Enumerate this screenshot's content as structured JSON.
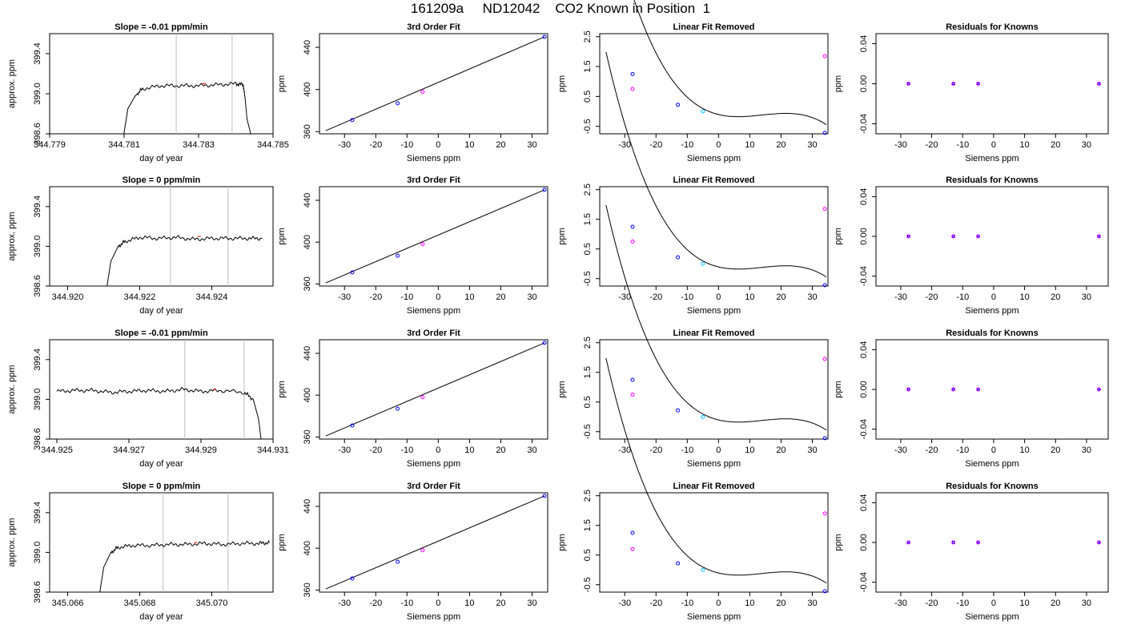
{
  "page_title": "161209a     ND12042    CO2 Known in Position  1",
  "colors": {
    "axis": "#000000",
    "trace": "#000000",
    "vline": "#bebebe",
    "known_point": "#0000ff",
    "removed_point": "#ff00ff",
    "highlight_point": "#00bfff",
    "mean_mark": "#ff0000"
  },
  "chart_data": [
    {
      "type": "line",
      "row": 1,
      "col": 1,
      "title": "Slope =  -0.01  ppm/min",
      "xlabel": "day of year",
      "ylabel": "approx. ppm",
      "xlim": [
        344.779,
        344.785
      ],
      "ylim": [
        398.6,
        399.6
      ],
      "xticks": [
        "344.779",
        "344.781",
        "344.783",
        "344.785"
      ],
      "yticks": [
        "398.6",
        "399.0",
        "399.4"
      ],
      "vlines": [
        344.7824,
        344.7839
      ],
      "x": [
        344.78095,
        344.7811,
        344.7813,
        344.7815,
        344.782,
        344.7825,
        344.783,
        344.7835,
        344.784,
        344.7842,
        344.78425,
        344.7843,
        344.7844,
        344.7845
      ],
      "y": [
        398.5,
        398.85,
        398.98,
        399.05,
        399.08,
        399.08,
        399.08,
        399.09,
        399.1,
        399.09,
        398.95,
        398.75,
        398.6,
        398.5
      ]
    },
    {
      "type": "line",
      "row": 1,
      "col": 2,
      "title": "3rd Order Fit",
      "xlabel": "Siemens ppm",
      "ylabel": "ppm",
      "xlim": [
        -38,
        35
      ],
      "ylim": [
        358,
        453
      ],
      "xticks": [
        "-30",
        "-20",
        "-10",
        "0",
        "10",
        "20",
        "30"
      ],
      "yticks": [
        "360",
        "400",
        "440"
      ],
      "known_points": [
        {
          "x": -27.5,
          "y": 371
        },
        {
          "x": -13,
          "y": 387
        },
        {
          "x": 34,
          "y": 450
        }
      ],
      "removed_points": [
        {
          "x": -5,
          "y": 398
        }
      ]
    },
    {
      "type": "scatter",
      "row": 1,
      "col": 3,
      "title": "Linear Fit Removed",
      "xlabel": "Siemens ppm",
      "ylabel": "ppm",
      "xlim": [
        -38,
        35
      ],
      "ylim": [
        -0.75,
        2.6
      ],
      "xticks": [
        "-30",
        "-20",
        "-10",
        "0",
        "10",
        "20",
        "30"
      ],
      "yticks": [
        "-0.5",
        "0.5",
        "1.5",
        "2.5"
      ],
      "known_points": [
        {
          "x": -27.5,
          "y": 1.25
        },
        {
          "x": -13,
          "y": 0.22
        },
        {
          "x": 34,
          "y": -0.72
        }
      ],
      "highlight_points": [
        {
          "x": -5,
          "y": 0.0
        }
      ],
      "removed_points": [
        {
          "x": -27.5,
          "y": 0.75
        },
        {
          "x": 34,
          "y": 1.85
        }
      ]
    },
    {
      "type": "scatter",
      "row": 1,
      "col": 4,
      "title": "Residuals for Knowns",
      "xlabel": "Siemens ppm",
      "ylabel": "ppm",
      "xlim": [
        -38,
        37
      ],
      "ylim": [
        -0.05,
        0.05
      ],
      "xticks": [
        "-30",
        "-20",
        "-10",
        "0",
        "10",
        "20",
        "30"
      ],
      "yticks": [
        "-0.04",
        "0.00",
        "0.04"
      ],
      "points": [
        {
          "x": -27.5,
          "y": 0
        },
        {
          "x": -13,
          "y": 0
        },
        {
          "x": -5,
          "y": 0
        },
        {
          "x": 34,
          "y": 0
        }
      ]
    },
    {
      "type": "line",
      "row": 2,
      "col": 1,
      "title": "Slope =  0  ppm/min",
      "xlabel": "day of year",
      "ylabel": "approx. ppm",
      "xlim": [
        344.9195,
        344.9257
      ],
      "ylim": [
        398.6,
        399.6
      ],
      "xticks": [
        "344.920",
        "344.922",
        "344.924"
      ],
      "yticks": [
        "398.6",
        "399.0",
        "399.4"
      ],
      "vlines": [
        344.92285,
        344.92445
      ],
      "x": [
        344.92105,
        344.9212,
        344.9214,
        344.9216,
        344.922,
        344.9225,
        344.923,
        344.9235,
        344.924,
        344.9245,
        344.925,
        344.9254
      ],
      "y": [
        398.5,
        398.85,
        399.0,
        399.05,
        399.09,
        399.08,
        399.09,
        399.07,
        399.08,
        399.08,
        399.08,
        399.08
      ]
    },
    {
      "type": "line",
      "row": 2,
      "col": 2,
      "title": "3rd Order Fit",
      "xlabel": "Siemens ppm",
      "ylabel": "ppm",
      "xlim": [
        -38,
        35
      ],
      "ylim": [
        358,
        453
      ],
      "xticks": [
        "-30",
        "-20",
        "-10",
        "0",
        "10",
        "20",
        "30"
      ],
      "yticks": [
        "360",
        "400",
        "440"
      ],
      "known_points": [
        {
          "x": -27.5,
          "y": 371
        },
        {
          "x": -13,
          "y": 387
        },
        {
          "x": 34,
          "y": 450
        }
      ],
      "removed_points": [
        {
          "x": -5,
          "y": 398
        }
      ]
    },
    {
      "type": "scatter",
      "row": 2,
      "col": 3,
      "title": "Linear Fit Removed",
      "xlabel": "Siemens ppm",
      "ylabel": "ppm",
      "xlim": [
        -38,
        35
      ],
      "ylim": [
        -0.75,
        2.6
      ],
      "xticks": [
        "-30",
        "-20",
        "-10",
        "0",
        "10",
        "20",
        "30"
      ],
      "yticks": [
        "-0.5",
        "0.5",
        "1.5",
        "2.5"
      ],
      "known_points": [
        {
          "x": -27.5,
          "y": 1.25
        },
        {
          "x": -13,
          "y": 0.22
        },
        {
          "x": 34,
          "y": -0.72
        }
      ],
      "highlight_points": [
        {
          "x": -5,
          "y": 0.0
        }
      ],
      "removed_points": [
        {
          "x": -27.5,
          "y": 0.75
        },
        {
          "x": 34,
          "y": 1.85
        }
      ]
    },
    {
      "type": "scatter",
      "row": 2,
      "col": 4,
      "title": "Residuals for Knowns",
      "xlabel": "Siemens ppm",
      "ylabel": "ppm",
      "xlim": [
        -38,
        37
      ],
      "ylim": [
        -0.05,
        0.05
      ],
      "xticks": [
        "-30",
        "-20",
        "-10",
        "0",
        "10",
        "20",
        "30"
      ],
      "yticks": [
        "-0.04",
        "0.00",
        "0.04"
      ],
      "points": [
        {
          "x": -27.5,
          "y": 0
        },
        {
          "x": -13,
          "y": 0
        },
        {
          "x": -5,
          "y": 0
        },
        {
          "x": 34,
          "y": 0
        }
      ]
    },
    {
      "type": "line",
      "row": 3,
      "col": 1,
      "title": "Slope =  -0.01  ppm/min",
      "xlabel": "day of year",
      "ylabel": "approx. ppm",
      "xlim": [
        344.9248,
        344.931
      ],
      "ylim": [
        398.6,
        399.6
      ],
      "xticks": [
        "344.925",
        "344.927",
        "344.929",
        "344.931"
      ],
      "yticks": [
        "398.6",
        "399.0",
        "399.4"
      ],
      "vlines": [
        344.92855,
        344.9302
      ],
      "x": [
        344.925,
        344.9255,
        344.926,
        344.9265,
        344.927,
        344.9275,
        344.928,
        344.9285,
        344.929,
        344.9295,
        344.9302,
        344.93045,
        344.9306,
        344.9307
      ],
      "y": [
        399.08,
        399.09,
        399.09,
        399.07,
        399.08,
        399.09,
        399.08,
        399.1,
        399.08,
        399.09,
        399.07,
        399.0,
        398.8,
        398.5
      ]
    },
    {
      "type": "line",
      "row": 3,
      "col": 2,
      "title": "3rd Order Fit",
      "xlabel": "Siemens ppm",
      "ylabel": "ppm",
      "xlim": [
        -38,
        35
      ],
      "ylim": [
        358,
        453
      ],
      "xticks": [
        "-30",
        "-20",
        "-10",
        "0",
        "10",
        "20",
        "30"
      ],
      "yticks": [
        "360",
        "400",
        "440"
      ],
      "known_points": [
        {
          "x": -27.5,
          "y": 371
        },
        {
          "x": -13,
          "y": 387
        },
        {
          "x": 34,
          "y": 450
        }
      ],
      "removed_points": [
        {
          "x": -5,
          "y": 398
        }
      ]
    },
    {
      "type": "scatter",
      "row": 3,
      "col": 3,
      "title": "Linear Fit Removed",
      "xlabel": "Siemens ppm",
      "ylabel": "ppm",
      "xlim": [
        -38,
        35
      ],
      "ylim": [
        -0.75,
        2.6
      ],
      "xticks": [
        "-30",
        "-20",
        "-10",
        "0",
        "10",
        "20",
        "30"
      ],
      "yticks": [
        "-0.5",
        "0.5",
        "1.5",
        "2.5"
      ],
      "known_points": [
        {
          "x": -27.5,
          "y": 1.25
        },
        {
          "x": -13,
          "y": 0.22
        },
        {
          "x": 34,
          "y": -0.72
        }
      ],
      "highlight_points": [
        {
          "x": -5,
          "y": 0.0
        }
      ],
      "removed_points": [
        {
          "x": -27.5,
          "y": 0.75
        },
        {
          "x": 34,
          "y": 1.95
        }
      ]
    },
    {
      "type": "scatter",
      "row": 3,
      "col": 4,
      "title": "Residuals for Knowns",
      "xlabel": "Siemens ppm",
      "ylabel": "ppm",
      "xlim": [
        -38,
        37
      ],
      "ylim": [
        -0.05,
        0.05
      ],
      "xticks": [
        "-30",
        "-20",
        "-10",
        "0",
        "10",
        "20",
        "30"
      ],
      "yticks": [
        "-0.04",
        "0.00",
        "0.04"
      ],
      "points": [
        {
          "x": -27.5,
          "y": 0
        },
        {
          "x": -13,
          "y": 0
        },
        {
          "x": -5,
          "y": 0
        },
        {
          "x": 34,
          "y": 0
        }
      ]
    },
    {
      "type": "line",
      "row": 4,
      "col": 1,
      "title": "Slope =  0  ppm/min",
      "xlabel": "day of year",
      "ylabel": "approx. ppm",
      "xlim": [
        345.0655,
        345.0717
      ],
      "ylim": [
        398.6,
        399.6
      ],
      "xticks": [
        "345.066",
        "345.068",
        "345.070"
      ],
      "yticks": [
        "398.6",
        "399.0",
        "399.4"
      ],
      "vlines": [
        345.06865,
        345.07045
      ],
      "x": [
        345.06685,
        345.067,
        345.0672,
        345.0674,
        345.0678,
        345.0683,
        345.0688,
        345.0693,
        345.0698,
        345.0703,
        345.0708,
        345.0713,
        345.0716
      ],
      "y": [
        398.5,
        398.85,
        399.0,
        399.05,
        399.07,
        399.07,
        399.08,
        399.08,
        399.09,
        399.08,
        399.09,
        399.09,
        399.1
      ]
    },
    {
      "type": "line",
      "row": 4,
      "col": 2,
      "title": "3rd Order Fit",
      "xlabel": "Siemens ppm",
      "ylabel": "ppm",
      "xlim": [
        -38,
        35
      ],
      "ylim": [
        358,
        453
      ],
      "xticks": [
        "-30",
        "-20",
        "-10",
        "0",
        "10",
        "20",
        "30"
      ],
      "yticks": [
        "360",
        "400",
        "440"
      ],
      "known_points": [
        {
          "x": -27.5,
          "y": 371
        },
        {
          "x": -13,
          "y": 387
        },
        {
          "x": 34,
          "y": 450
        }
      ],
      "removed_points": [
        {
          "x": -5,
          "y": 398
        }
      ]
    },
    {
      "type": "scatter",
      "row": 4,
      "col": 3,
      "title": "Linear Fit Removed",
      "xlabel": "Siemens ppm",
      "ylabel": "ppm",
      "xlim": [
        -38,
        35
      ],
      "ylim": [
        -0.75,
        2.6
      ],
      "xticks": [
        "-30",
        "-20",
        "-10",
        "0",
        "10",
        "20",
        "30"
      ],
      "yticks": [
        "-0.5",
        "0.5",
        "1.5",
        "2.5"
      ],
      "known_points": [
        {
          "x": -27.5,
          "y": 1.25
        },
        {
          "x": -13,
          "y": 0.22
        },
        {
          "x": 34,
          "y": -0.72
        }
      ],
      "highlight_points": [
        {
          "x": -5,
          "y": 0.0
        }
      ],
      "removed_points": [
        {
          "x": -27.5,
          "y": 0.7
        },
        {
          "x": 34,
          "y": 1.9
        }
      ]
    },
    {
      "type": "scatter",
      "row": 4,
      "col": 4,
      "title": "Residuals for Knowns",
      "xlabel": "Siemens ppm",
      "ylabel": "ppm",
      "xlim": [
        -38,
        37
      ],
      "ylim": [
        -0.05,
        0.05
      ],
      "xticks": [
        "-30",
        "-20",
        "-10",
        "0",
        "10",
        "20",
        "30"
      ],
      "yticks": [
        "-0.04",
        "0.00",
        "0.04"
      ],
      "points": [
        {
          "x": -27.5,
          "y": 0
        },
        {
          "x": -13,
          "y": 0
        },
        {
          "x": -5,
          "y": 0
        },
        {
          "x": 34,
          "y": 0
        }
      ]
    }
  ]
}
